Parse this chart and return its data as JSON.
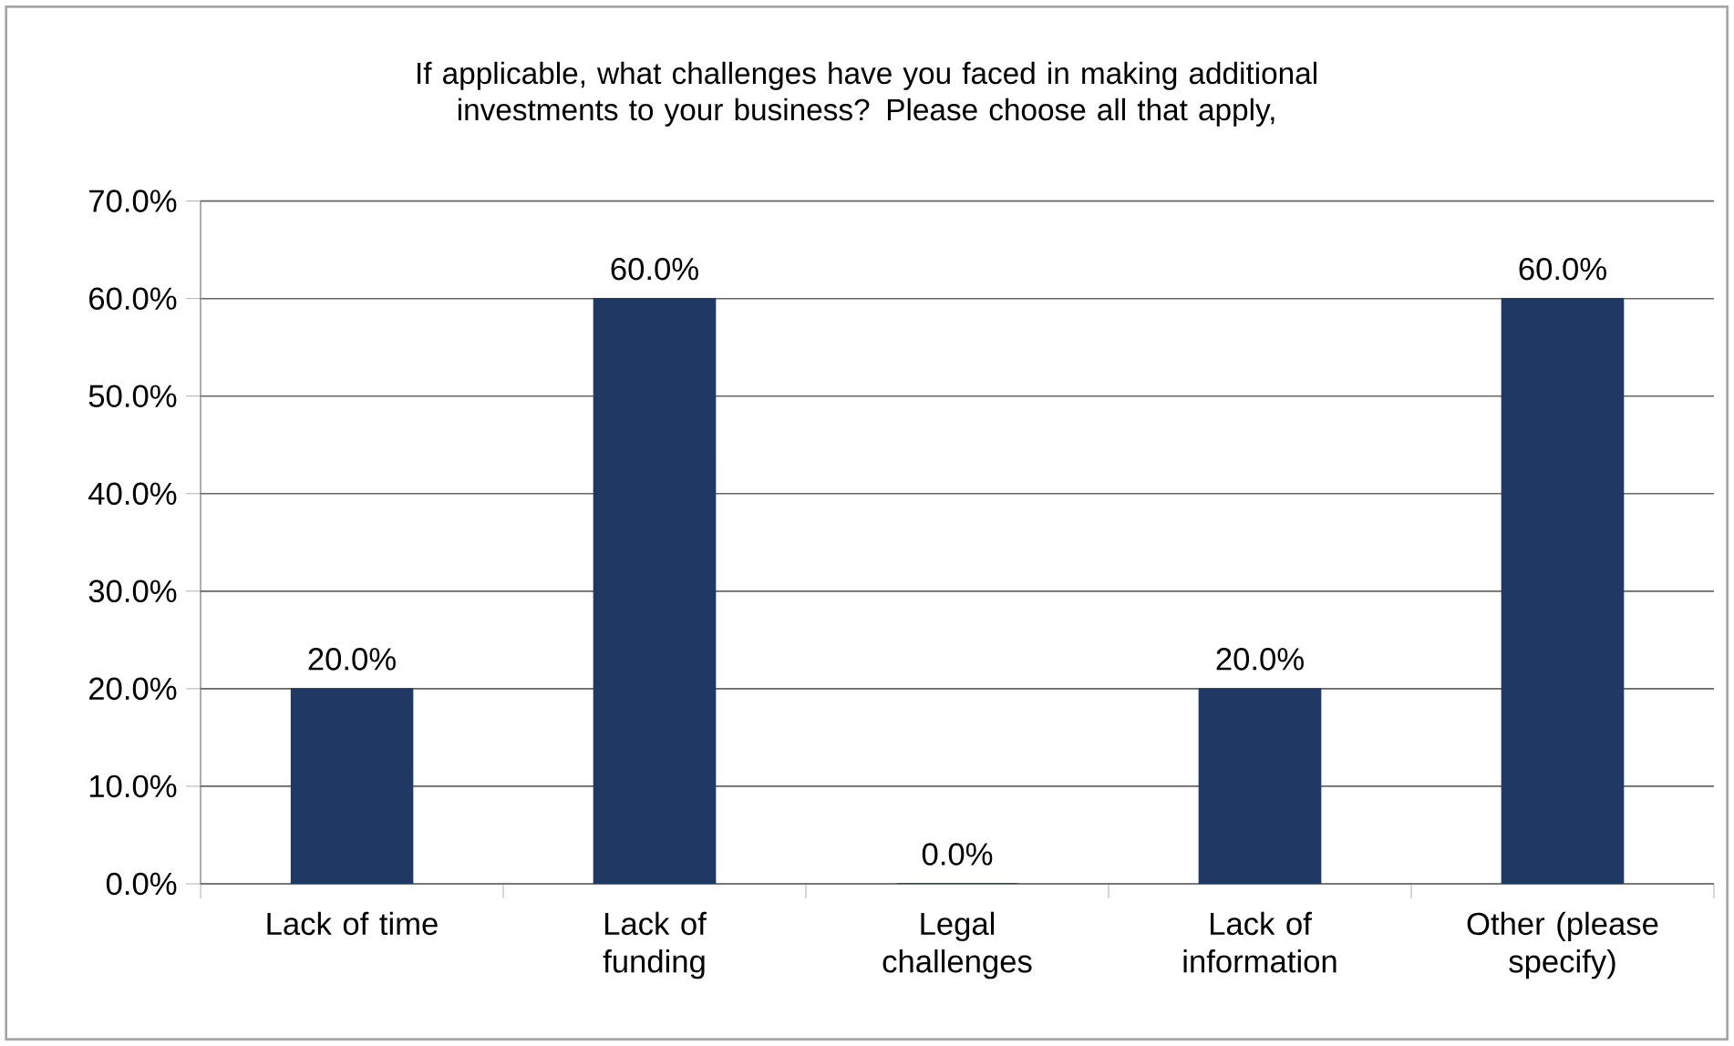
{
  "chart_data": {
    "type": "bar",
    "title": "If applicable, what challenges have you faced in making additional investments to your business? Please choose all that apply,",
    "categories": [
      "Lack of time",
      "Lack of funding",
      "Legal challenges",
      "Lack of information",
      "Other (please specify)"
    ],
    "values": [
      20,
      60,
      0,
      20,
      60
    ],
    "value_labels": [
      "20.0%",
      "60.0%",
      "0.0%",
      "20.0%",
      "60.0%"
    ],
    "color": "#1f3864",
    "ylim": [
      0,
      70
    ],
    "yticks": [
      {
        "value": 0,
        "label": "0.0%"
      },
      {
        "value": 10,
        "label": "10.0%"
      },
      {
        "value": 20,
        "label": "20.0%"
      },
      {
        "value": 30,
        "label": "30.0%"
      },
      {
        "value": 40,
        "label": "40.0%"
      },
      {
        "value": 50,
        "label": "50.0%"
      },
      {
        "value": 60,
        "label": "60.0%"
      },
      {
        "value": 70,
        "label": "70.0%"
      }
    ],
    "grid": "y"
  }
}
